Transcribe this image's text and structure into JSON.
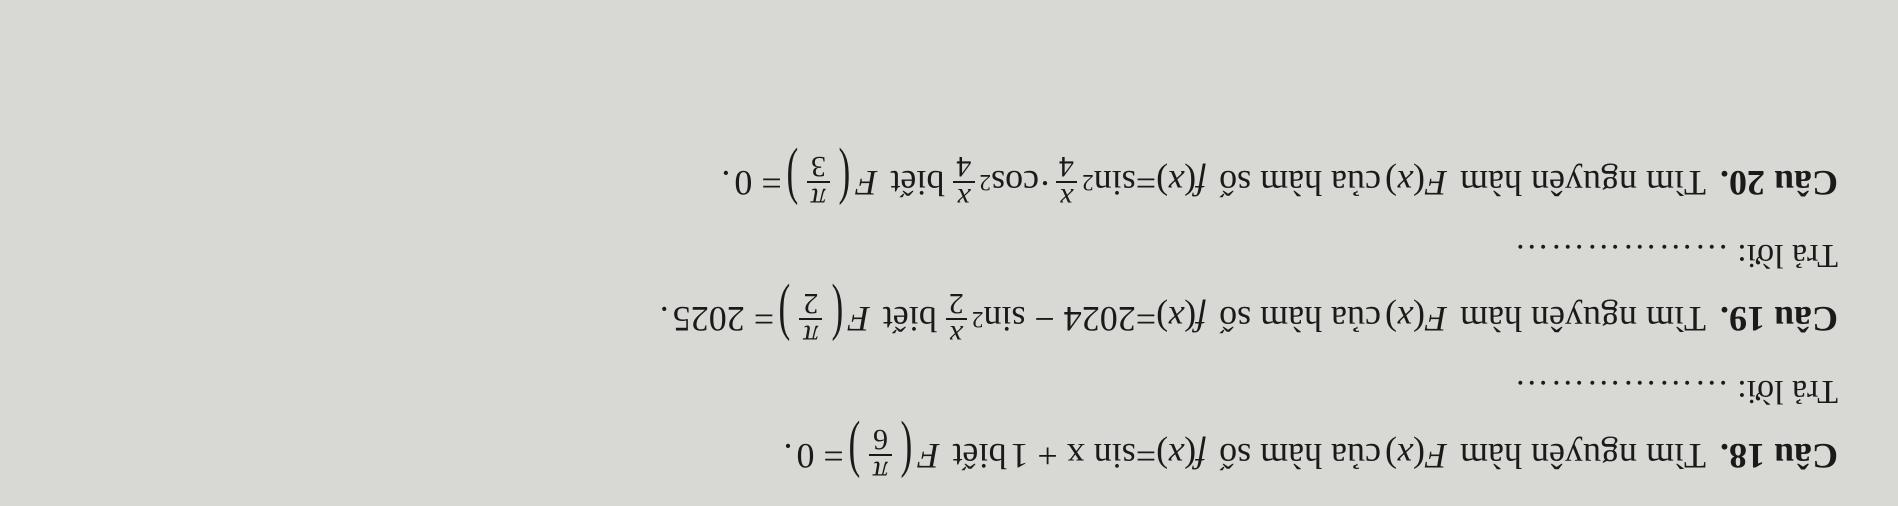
{
  "page": {
    "background_color": "#d8d8d4",
    "text_color": "#1a1a1a",
    "font_family": "Times New Roman",
    "base_fontsize_pt": 27,
    "rotation_deg": 180
  },
  "q18": {
    "label": "Câu 18.",
    "lead": "Tìm nguyên hàm",
    "Fx": "F",
    "of": "của hàm số",
    "fx_eq": "f",
    "rhs_text": "sin x + 1",
    "cond": "biết",
    "frac_num": "π",
    "frac_den": "6",
    "eq_zero": "= 0",
    "period": "."
  },
  "answer_label": "Trả lời:",
  "dots": "………………",
  "q19": {
    "label": "Câu 19.",
    "lead": "Tìm nguyên hàm",
    "Fx": "F",
    "of": "của hàm số",
    "fx_eq": "f",
    "rhs_a": "2024 − sin",
    "exp2": "2",
    "frac_num_x": "x",
    "frac_den_2": "2",
    "cond": "biết",
    "frac_num_pi": "π",
    "eq_val": "= 2025",
    "period": "."
  },
  "q20": {
    "label": "Câu 20.",
    "lead": "Tìm nguyên hàm",
    "Fx": "F",
    "of": "của hàm số",
    "fx_eq": "f",
    "sin": "sin",
    "cos": "cos",
    "exp2": "2",
    "frac_num_x": "x",
    "frac_den_4": "4",
    "dot": "·",
    "cond": "biết",
    "frac_num_pi": "π",
    "frac_den_3": "3",
    "eq_zero": "= 0",
    "period": "."
  }
}
